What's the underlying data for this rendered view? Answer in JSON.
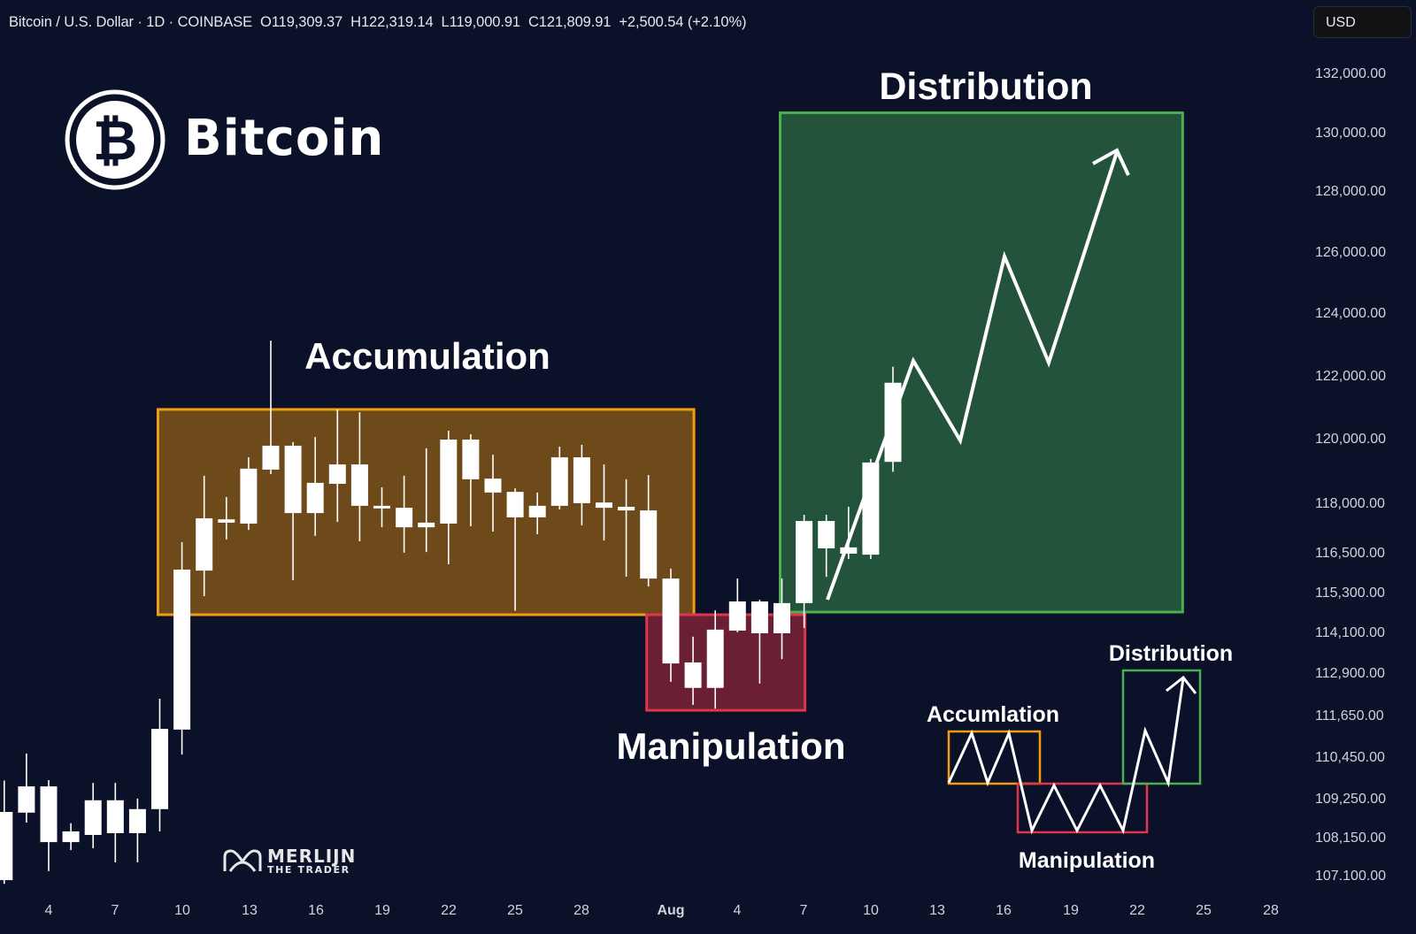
{
  "header": {
    "symbol": "Bitcoin / U.S. Dollar · 1D · COINBASE",
    "open": "O119,309.37",
    "high": "H122,319.14",
    "low": "L119,000.91",
    "close": "C121,809.91",
    "change": "+2,500.54 (+2.10%)"
  },
  "currency_button": "USD",
  "brand": {
    "name": "Bitcoin",
    "icon": "bitcoin-logo-icon"
  },
  "watermark": {
    "line1": "MERLIJN",
    "line2": "THE TRADER"
  },
  "annotations": {
    "distribution": "Distribution",
    "accumulation": "Accumulation",
    "manipulation": "Manipulation",
    "mini_accumulation": "Accumlation",
    "mini_distribution": "Distribution",
    "mini_manipulation": "Manipulation"
  },
  "colors": {
    "background": "#0a1128",
    "candle": "#ffffff",
    "accumulation_box": "#f39c12",
    "manipulation_box": "#e0364a",
    "distribution_box": "#4caf50"
  },
  "chart_data": {
    "type": "candlestick",
    "interval": "1D",
    "y_scale": "log",
    "price_ticks": [
      {
        "value": 132000,
        "label": "132,000.00"
      },
      {
        "value": 130000,
        "label": "130,000.00"
      },
      {
        "value": 128000,
        "label": "128,000.00"
      },
      {
        "value": 126000,
        "label": "126,000.00"
      },
      {
        "value": 124000,
        "label": "124,000.00"
      },
      {
        "value": 122000,
        "label": "122,000.00"
      },
      {
        "value": 120000,
        "label": "120,000.00"
      },
      {
        "value": 118000,
        "label": "118,000.00"
      },
      {
        "value": 116500,
        "label": "116,500.00"
      },
      {
        "value": 115300,
        "label": "115,300.00"
      },
      {
        "value": 114100,
        "label": "114,100.00"
      },
      {
        "value": 112900,
        "label": "112,900.00"
      },
      {
        "value": 111650,
        "label": "111,650.00"
      },
      {
        "value": 110450,
        "label": "110,450.00"
      },
      {
        "value": 109250,
        "label": "109,250.00"
      },
      {
        "value": 108150,
        "label": "108,150.00"
      },
      {
        "value": 107100,
        "label": "107.100.00"
      }
    ],
    "x_ticks": [
      "4",
      "7",
      "10",
      "13",
      "16",
      "19",
      "22",
      "25",
      "28",
      "Aug",
      "4",
      "7",
      "10",
      "13",
      "16",
      "19",
      "22",
      "25",
      "28"
    ],
    "candles": [
      [
        "Jul 2",
        107000,
        109800,
        106900,
        108900
      ],
      [
        "Jul 3",
        108880,
        110580,
        108600,
        109630
      ],
      [
        "Jul 4",
        109630,
        109810,
        107250,
        108050
      ],
      [
        "Jul 5",
        108050,
        108580,
        107830,
        108350
      ],
      [
        "Jul 6",
        108250,
        109730,
        107880,
        109230
      ],
      [
        "Jul 7",
        109230,
        109730,
        107490,
        108300
      ],
      [
        "Jul 8",
        108300,
        109280,
        107490,
        108980
      ],
      [
        "Jul 9",
        108980,
        112170,
        108350,
        111290
      ],
      [
        "Jul 10",
        111270,
        116850,
        110550,
        116020
      ],
      [
        "Jul 11",
        115990,
        118880,
        115220,
        117570
      ],
      [
        "Jul 12",
        117540,
        118220,
        116930,
        117440
      ],
      [
        "Jul 13",
        117410,
        119450,
        117220,
        119100
      ],
      [
        "Jul 14",
        119070,
        123150,
        118930,
        119810
      ],
      [
        "Jul 15",
        119810,
        119920,
        115700,
        117730
      ],
      [
        "Jul 16",
        117730,
        120080,
        117040,
        118660
      ],
      [
        "Jul 17",
        118630,
        120960,
        117460,
        119230
      ],
      [
        "Jul 18",
        119230,
        120870,
        116880,
        117950
      ],
      [
        "Jul 19",
        117950,
        118520,
        117300,
        117870
      ],
      [
        "Jul 20",
        117890,
        118880,
        116530,
        117300
      ],
      [
        "Jul 21",
        117300,
        119730,
        116550,
        117440
      ],
      [
        "Jul 22",
        117410,
        120280,
        116180,
        120000
      ],
      [
        "Jul 23",
        120000,
        120170,
        117330,
        118770
      ],
      [
        "Jul 24",
        118790,
        119530,
        117170,
        118360
      ],
      [
        "Jul 25",
        118380,
        118490,
        114780,
        117600
      ],
      [
        "Jul 26",
        117600,
        118360,
        117090,
        117950
      ],
      [
        "Jul 27",
        117950,
        119780,
        117840,
        119450
      ],
      [
        "Jul 28",
        119450,
        119840,
        117360,
        118030
      ],
      [
        "Jul 29",
        118050,
        119230,
        116900,
        117890
      ],
      [
        "Jul 30",
        117920,
        118770,
        115810,
        117810
      ],
      [
        "Jul 31",
        117810,
        118900,
        115510,
        115750
      ],
      [
        "Aug 1",
        115750,
        116050,
        112670,
        113210
      ],
      [
        "Aug 2",
        113240,
        114000,
        111990,
        112490
      ],
      [
        "Aug 3",
        112490,
        114790,
        111880,
        114210
      ],
      [
        "Aug 4",
        114180,
        115750,
        114130,
        115060
      ],
      [
        "Aug 5",
        115060,
        115110,
        112620,
        114100
      ],
      [
        "Aug 6",
        114100,
        115750,
        113340,
        115010
      ],
      [
        "Aug 7",
        115010,
        117680,
        114260,
        117490
      ],
      [
        "Aug 8",
        117490,
        117680,
        115800,
        116660
      ],
      [
        "Aug 9",
        116690,
        117920,
        116340,
        116500
      ],
      [
        "Aug 10",
        116470,
        119400,
        116340,
        119290
      ],
      [
        "Aug 11",
        119309.37,
        122319.14,
        119000.91,
        121809.91
      ]
    ],
    "zones": [
      {
        "name": "Accumulation",
        "from": "Jul 9",
        "to": "Aug 2",
        "price_low": 114660,
        "price_high": 120960
      },
      {
        "name": "Manipulation",
        "from": "Jul 31",
        "to": "Aug 7",
        "price_low": 111830,
        "price_high": 114660
      },
      {
        "name": "Distribution",
        "from": "Aug 6",
        "to": "Aug 24",
        "price_low": 114740,
        "price_high": 130700
      }
    ]
  }
}
